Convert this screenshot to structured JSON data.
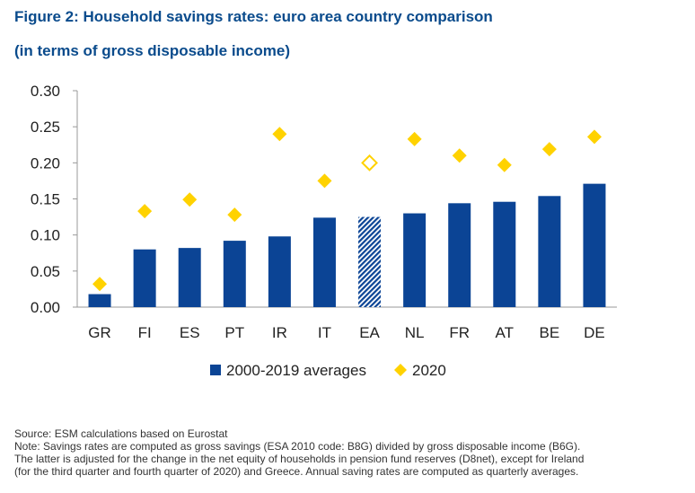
{
  "title": "Figure 2: Household savings rates: euro area country comparison",
  "subtitle": "(in terms of gross disposable income)",
  "chart_data": {
    "type": "bar",
    "categories": [
      "GR",
      "FI",
      "ES",
      "PT",
      "IR",
      "IT",
      "EA",
      "NL",
      "FR",
      "AT",
      "BE",
      "DE"
    ],
    "highlight_category": "EA",
    "series": [
      {
        "name": "2000-2019 averages",
        "kind": "bar",
        "values": [
          0.018,
          0.08,
          0.082,
          0.092,
          0.098,
          0.124,
          0.125,
          0.13,
          0.144,
          0.146,
          0.154,
          0.171
        ]
      },
      {
        "name": "2020",
        "kind": "marker-diamond",
        "values": [
          0.032,
          0.133,
          0.149,
          0.128,
          0.24,
          0.175,
          0.2,
          0.233,
          0.21,
          0.197,
          0.219,
          0.236
        ]
      }
    ],
    "yticks": [
      "0.00",
      "0.05",
      "0.10",
      "0.15",
      "0.20",
      "0.25",
      "0.30"
    ],
    "ylim": [
      0,
      0.3
    ],
    "xlabel": "",
    "ylabel": "",
    "legend_position": "bottom",
    "colors": {
      "bar": "#0b4495",
      "marker": "#ffd200",
      "axis": "#999999"
    }
  },
  "footer": {
    "source": "Source: ESM calculations based on Eurostat",
    "note_lines": [
      "Note: Savings rates are computed as gross savings (ESA 2010 code: B8G) divided by gross disposable income (B6G).",
      "The latter is adjusted for the change in the net equity of households in pension fund reserves (D8net), except for Ireland",
      "(for the third quarter and fourth quarter of 2020) and Greece. Annual saving rates are computed as quarterly averages."
    ]
  }
}
